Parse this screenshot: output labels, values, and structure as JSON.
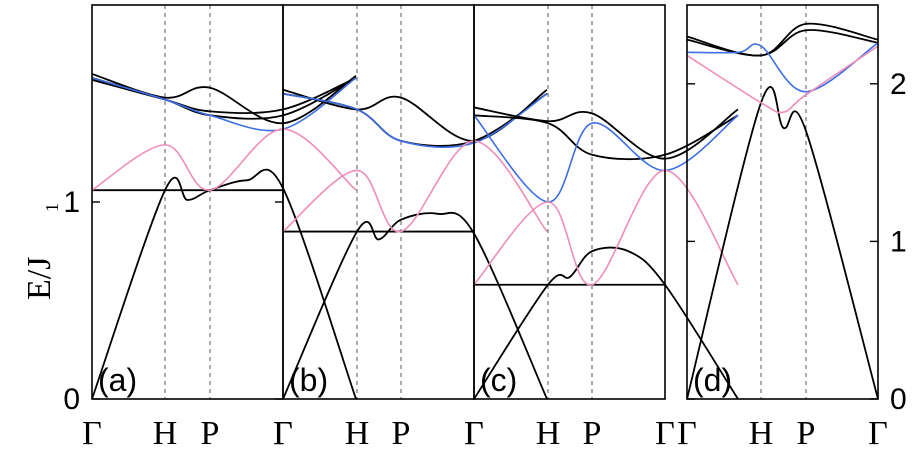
{
  "figure": {
    "ylabel": "E/J",
    "ylabel_sub": "1",
    "colors": {
      "acoustic": "#000000",
      "pink": "#f08cba",
      "blue": "#3c6fe6",
      "vline": "#555555"
    }
  },
  "chart_data": [
    {
      "type": "line",
      "panel_label": "(a)",
      "x": [
        "Γ",
        "H",
        "P",
        "Γ"
      ],
      "y_ticks": [
        "0",
        "1"
      ],
      "ylim": [
        0,
        2.0
      ],
      "grid": false,
      "series": [
        {
          "color": "black",
          "points": [
            [
              0,
              0
            ],
            [
              1,
              1.06
            ],
            [
              1.5,
              1.01
            ],
            [
              2,
              1.06
            ],
            [
              2.5,
              1.11
            ],
            [
              3,
              1.07
            ],
            [
              4,
              0
            ]
          ]
        },
        {
          "color": "black",
          "points": [
            [
              0,
              1.06
            ],
            [
              2,
              1.06
            ],
            [
              3,
              1.06
            ]
          ]
        },
        {
          "color": "black",
          "points": [
            [
              0,
              1.63
            ],
            [
              1,
              1.52
            ],
            [
              2,
              1.44
            ],
            [
              3,
              1.44
            ],
            [
              4,
              1.63
            ]
          ]
        },
        {
          "color": "black",
          "points": [
            [
              0,
              1.65
            ],
            [
              1,
              1.53
            ],
            [
              2,
              1.58
            ],
            [
              3,
              1.4
            ],
            [
              4,
              1.64
            ]
          ]
        },
        {
          "color": "black",
          "points": [
            [
              0,
              1.62
            ],
            [
              1,
              1.52
            ],
            [
              2,
              1.46
            ],
            [
              3,
              1.47
            ],
            [
              4,
              1.63
            ]
          ]
        },
        {
          "color": "blue",
          "points": [
            [
              0,
              1.63
            ],
            [
              1,
              1.52
            ],
            [
              2,
              1.44
            ],
            [
              3,
              1.37
            ],
            [
              4,
              1.63
            ]
          ]
        },
        {
          "color": "pink",
          "points": [
            [
              0,
              1.06
            ],
            [
              1,
              1.29
            ],
            [
              2,
              1.06
            ],
            [
              3,
              1.37
            ],
            [
              4,
              1.06
            ]
          ]
        }
      ]
    },
    {
      "type": "line",
      "panel_label": "(b)",
      "x": [
        "Γ",
        "H",
        "P",
        "Γ"
      ],
      "ylim": [
        0,
        2.0
      ],
      "series": [
        {
          "color": "black",
          "points": [
            [
              0,
              0
            ],
            [
              1,
              0.85
            ],
            [
              1.5,
              0.81
            ],
            [
              2,
              0.91
            ],
            [
              2.5,
              0.94
            ],
            [
              3,
              0.84
            ],
            [
              4,
              0
            ]
          ]
        },
        {
          "color": "black",
          "points": [
            [
              0,
              0.85
            ],
            [
              2,
              0.85
            ],
            [
              3,
              0.85
            ]
          ]
        },
        {
          "color": "black",
          "points": [
            [
              0,
              1.55
            ],
            [
              1,
              1.47
            ],
            [
              2,
              1.31
            ],
            [
              3,
              1.31
            ],
            [
              4,
              1.55
            ]
          ]
        },
        {
          "color": "black",
          "points": [
            [
              0,
              1.57
            ],
            [
              1,
              1.47
            ],
            [
              2,
              1.53
            ],
            [
              3,
              1.31
            ],
            [
              4,
              1.57
            ]
          ]
        },
        {
          "color": "blue",
          "points": [
            [
              0,
              1.55
            ],
            [
              1,
              1.47
            ],
            [
              2,
              1.31
            ],
            [
              3,
              1.3
            ],
            [
              4,
              1.55
            ]
          ]
        },
        {
          "color": "pink",
          "points": [
            [
              0,
              0.85
            ],
            [
              1,
              1.16
            ],
            [
              2,
              0.85
            ],
            [
              3,
              1.31
            ],
            [
              4,
              0.85
            ]
          ]
        }
      ]
    },
    {
      "type": "line",
      "panel_label": "(c)",
      "x": [
        "Γ",
        "H",
        "P",
        "Γ"
      ],
      "ylim": [
        0,
        2.0
      ],
      "series": [
        {
          "color": "black",
          "points": [
            [
              0,
              0
            ],
            [
              1,
              0.58
            ],
            [
              1.5,
              0.62
            ],
            [
              2,
              0.75
            ],
            [
              2.5,
              0.75
            ],
            [
              3,
              0.58
            ],
            [
              4,
              0
            ]
          ]
        },
        {
          "color": "black",
          "points": [
            [
              0,
              0.58
            ],
            [
              2,
              0.58
            ],
            [
              3,
              0.58
            ]
          ]
        },
        {
          "color": "black",
          "points": [
            [
              0,
              1.44
            ],
            [
              1,
              1.4
            ],
            [
              2,
              1.24
            ],
            [
              3,
              1.24
            ],
            [
              4,
              1.44
            ]
          ]
        },
        {
          "color": "black",
          "points": [
            [
              0,
              1.48
            ],
            [
              1,
              1.41
            ],
            [
              2,
              1.45
            ],
            [
              3,
              1.22
            ],
            [
              4,
              1.47
            ]
          ]
        },
        {
          "color": "blue",
          "points": [
            [
              0,
              1.44
            ],
            [
              1,
              1.0
            ],
            [
              2,
              1.4
            ],
            [
              3,
              1.16
            ],
            [
              4,
              1.44
            ]
          ]
        },
        {
          "color": "pink",
          "points": [
            [
              0,
              0.58
            ],
            [
              1,
              1.0
            ],
            [
              2,
              0.58
            ],
            [
              3,
              1.16
            ],
            [
              4,
              0.58
            ]
          ]
        }
      ]
    },
    {
      "type": "line",
      "panel_label": "(d)",
      "x": [
        "Γ",
        "H",
        "P",
        "Γ"
      ],
      "y_ticks": [
        "0",
        "1",
        "2"
      ],
      "ylim": [
        0,
        2.5
      ],
      "series": [
        {
          "color": "black",
          "points": [
            [
              0,
              0
            ],
            [
              1,
              1.88
            ],
            [
              1.5,
              1.72
            ],
            [
              2,
              1.7
            ],
            [
              3,
              0
            ]
          ]
        },
        {
          "color": "black",
          "points": [
            [
              0,
              2.3
            ],
            [
              1,
              2.18
            ],
            [
              2,
              2.38
            ],
            [
              3,
              2.28
            ]
          ]
        },
        {
          "color": "black",
          "points": [
            [
              0,
              2.28
            ],
            [
              1,
              2.18
            ],
            [
              2,
              2.34
            ],
            [
              3,
              2.26
            ]
          ]
        },
        {
          "color": "blue",
          "points": [
            [
              0,
              2.2
            ],
            [
              0.7,
              2.2
            ],
            [
              1,
              2.24
            ],
            [
              2,
              1.95
            ],
            [
              3,
              2.26
            ]
          ]
        },
        {
          "color": "pink",
          "points": [
            [
              0,
              2.18
            ],
            [
              1,
              1.88
            ],
            [
              1.5,
              1.82
            ],
            [
              2,
              1.93
            ],
            [
              3,
              2.24
            ]
          ]
        }
      ]
    }
  ]
}
